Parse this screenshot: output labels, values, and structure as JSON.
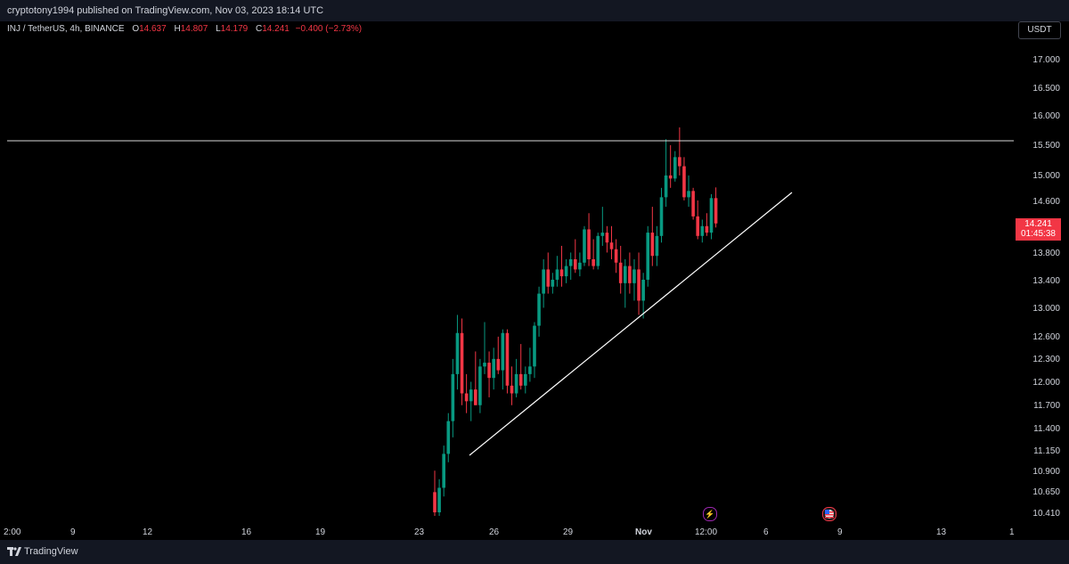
{
  "header": {
    "published": "cryptotony1994 published on TradingView.com, Nov 03, 2023 18:14 UTC"
  },
  "legend": {
    "symbol": "INJ / TetherUS, 4h, BINANCE",
    "o_label": "O",
    "o_value": "14.637",
    "h_label": "H",
    "h_value": "14.807",
    "l_label": "L",
    "l_value": "14.179",
    "c_label": "C",
    "c_value": "14.241",
    "change": "−0.400 (−2.73%)"
  },
  "price_axis": {
    "currency": "USDT",
    "labels": [
      "17.000",
      "16.500",
      "16.000",
      "15.500",
      "15.000",
      "14.600",
      "14.241",
      "13.800",
      "13.400",
      "13.000",
      "12.600",
      "12.300",
      "12.000",
      "11.700",
      "11.400",
      "11.150",
      "10.900",
      "10.650",
      "10.410"
    ],
    "last_price": "14.241",
    "countdown": "01:45:38"
  },
  "time_axis": {
    "labels": [
      "2:00",
      "9",
      "12",
      "16",
      "19",
      "23",
      "26",
      "29",
      "Nov",
      "12:00",
      "6",
      "9",
      "13",
      "1"
    ]
  },
  "footer": {
    "brand": "TradingView"
  },
  "colors": {
    "up": "#089981",
    "down": "#f23645",
    "background": "#000000",
    "axis_text": "#d1d4dc"
  },
  "event_icons": [
    "lightning-icon",
    "us-flag-icon"
  ],
  "chart_data": {
    "type": "candlestick",
    "title": "INJ / TetherUS, 4h, BINANCE",
    "scale": "log",
    "ylim": [
      10.3,
      17.4
    ],
    "x_range": [
      "Oct 22",
      "Nov 14"
    ],
    "candles": [
      {
        "o": 10.65,
        "h": 10.9,
        "l": 10.38,
        "c": 10.42
      },
      {
        "o": 10.42,
        "h": 10.8,
        "l": 10.38,
        "c": 10.7
      },
      {
        "o": 10.7,
        "h": 11.2,
        "l": 10.6,
        "c": 11.1
      },
      {
        "o": 11.1,
        "h": 11.6,
        "l": 11.0,
        "c": 11.5
      },
      {
        "o": 11.5,
        "h": 12.3,
        "l": 11.3,
        "c": 12.1
      },
      {
        "o": 12.1,
        "h": 12.9,
        "l": 11.9,
        "c": 12.65
      },
      {
        "o": 12.65,
        "h": 12.85,
        "l": 11.7,
        "c": 11.85
      },
      {
        "o": 11.85,
        "h": 12.1,
        "l": 11.6,
        "c": 11.75
      },
      {
        "o": 11.75,
        "h": 12.0,
        "l": 11.5,
        "c": 11.9
      },
      {
        "o": 11.9,
        "h": 12.4,
        "l": 11.7,
        "c": 11.7
      },
      {
        "o": 11.7,
        "h": 12.3,
        "l": 11.6,
        "c": 12.2
      },
      {
        "o": 12.2,
        "h": 12.8,
        "l": 12.1,
        "c": 12.25
      },
      {
        "o": 12.25,
        "h": 12.4,
        "l": 11.8,
        "c": 12.05
      },
      {
        "o": 12.05,
        "h": 12.45,
        "l": 11.9,
        "c": 12.3
      },
      {
        "o": 12.3,
        "h": 12.6,
        "l": 12.1,
        "c": 12.15
      },
      {
        "o": 12.15,
        "h": 12.7,
        "l": 11.9,
        "c": 12.65
      },
      {
        "o": 12.65,
        "h": 12.7,
        "l": 11.85,
        "c": 11.95
      },
      {
        "o": 11.95,
        "h": 12.2,
        "l": 11.7,
        "c": 11.85
      },
      {
        "o": 11.85,
        "h": 12.3,
        "l": 11.8,
        "c": 12.1
      },
      {
        "o": 12.1,
        "h": 12.5,
        "l": 11.9,
        "c": 11.95
      },
      {
        "o": 11.95,
        "h": 12.2,
        "l": 11.85,
        "c": 12.1
      },
      {
        "o": 12.1,
        "h": 12.45,
        "l": 12.0,
        "c": 12.2
      },
      {
        "o": 12.2,
        "h": 12.8,
        "l": 12.05,
        "c": 12.75
      },
      {
        "o": 12.75,
        "h": 13.3,
        "l": 12.6,
        "c": 13.2
      },
      {
        "o": 13.2,
        "h": 13.7,
        "l": 13.0,
        "c": 13.55
      },
      {
        "o": 13.55,
        "h": 13.8,
        "l": 13.2,
        "c": 13.3
      },
      {
        "o": 13.3,
        "h": 13.5,
        "l": 13.2,
        "c": 13.4
      },
      {
        "o": 13.4,
        "h": 13.75,
        "l": 13.3,
        "c": 13.55
      },
      {
        "o": 13.55,
        "h": 13.9,
        "l": 13.3,
        "c": 13.45
      },
      {
        "o": 13.45,
        "h": 13.7,
        "l": 13.35,
        "c": 13.6
      },
      {
        "o": 13.6,
        "h": 13.8,
        "l": 13.4,
        "c": 13.7
      },
      {
        "o": 13.7,
        "h": 14.0,
        "l": 13.5,
        "c": 13.55
      },
      {
        "o": 13.55,
        "h": 13.8,
        "l": 13.45,
        "c": 13.65
      },
      {
        "o": 13.65,
        "h": 14.2,
        "l": 13.6,
        "c": 14.15
      },
      {
        "o": 14.15,
        "h": 14.4,
        "l": 13.6,
        "c": 13.7
      },
      {
        "o": 13.7,
        "h": 14.0,
        "l": 13.55,
        "c": 13.6
      },
      {
        "o": 13.6,
        "h": 14.1,
        "l": 13.55,
        "c": 14.05
      },
      {
        "o": 14.05,
        "h": 14.5,
        "l": 13.9,
        "c": 14.1
      },
      {
        "o": 14.1,
        "h": 14.2,
        "l": 13.8,
        "c": 13.95
      },
      {
        "o": 13.95,
        "h": 14.2,
        "l": 13.7,
        "c": 13.85
      },
      {
        "o": 13.85,
        "h": 14.0,
        "l": 13.5,
        "c": 13.65
      },
      {
        "o": 13.65,
        "h": 13.9,
        "l": 13.2,
        "c": 13.35
      },
      {
        "o": 13.35,
        "h": 13.7,
        "l": 13.0,
        "c": 13.6
      },
      {
        "o": 13.6,
        "h": 13.8,
        "l": 13.2,
        "c": 13.35
      },
      {
        "o": 13.35,
        "h": 13.7,
        "l": 13.1,
        "c": 13.55
      },
      {
        "o": 13.55,
        "h": 13.8,
        "l": 12.9,
        "c": 13.1
      },
      {
        "o": 13.1,
        "h": 13.5,
        "l": 12.85,
        "c": 13.4
      },
      {
        "o": 13.4,
        "h": 14.2,
        "l": 13.3,
        "c": 14.1
      },
      {
        "o": 14.1,
        "h": 14.5,
        "l": 13.6,
        "c": 13.75
      },
      {
        "o": 13.75,
        "h": 14.2,
        "l": 13.6,
        "c": 14.05
      },
      {
        "o": 14.05,
        "h": 14.8,
        "l": 13.95,
        "c": 14.65
      },
      {
        "o": 14.65,
        "h": 15.6,
        "l": 14.5,
        "c": 15.0
      },
      {
        "o": 15.0,
        "h": 15.5,
        "l": 14.8,
        "c": 14.95
      },
      {
        "o": 14.95,
        "h": 15.4,
        "l": 14.9,
        "c": 15.3
      },
      {
        "o": 15.3,
        "h": 15.8,
        "l": 15.0,
        "c": 15.15
      },
      {
        "o": 15.15,
        "h": 15.3,
        "l": 14.6,
        "c": 14.65
      },
      {
        "o": 14.65,
        "h": 15.0,
        "l": 14.5,
        "c": 14.75
      },
      {
        "o": 14.75,
        "h": 14.8,
        "l": 14.3,
        "c": 14.35
      },
      {
        "o": 14.35,
        "h": 14.6,
        "l": 14.0,
        "c": 14.05
      },
      {
        "o": 14.05,
        "h": 14.3,
        "l": 13.95,
        "c": 14.2
      },
      {
        "o": 14.2,
        "h": 14.4,
        "l": 14.05,
        "c": 14.1
      },
      {
        "o": 14.1,
        "h": 14.7,
        "l": 14.0,
        "c": 14.637
      },
      {
        "o": 14.637,
        "h": 14.807,
        "l": 14.179,
        "c": 14.241
      }
    ],
    "annotations": [
      {
        "type": "horizontal_line",
        "price": 15.55
      },
      {
        "type": "trend_line",
        "from": {
          "date": "Oct 24",
          "price": 11.1
        },
        "to": {
          "date": "Nov 07",
          "price": 14.8
        }
      }
    ]
  }
}
